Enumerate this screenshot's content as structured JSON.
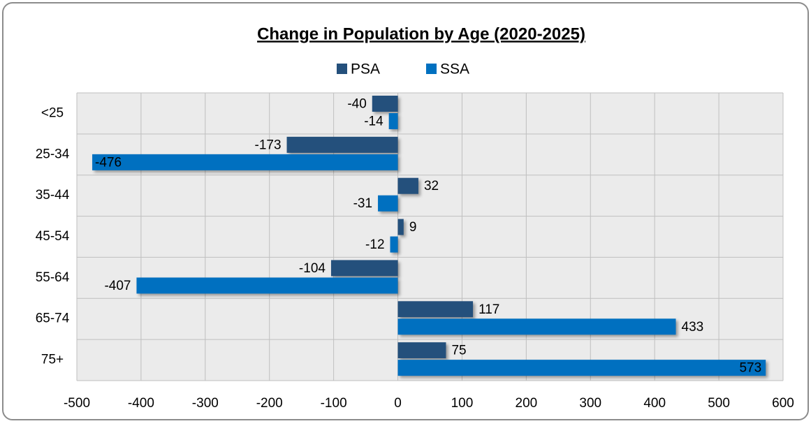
{
  "chart_data": {
    "type": "hbar",
    "title": "Change in Population by Age (2020-2025)",
    "categories": [
      "<25",
      "25-34",
      "35-44",
      "45-54",
      "55-64",
      "65-74",
      "75+"
    ],
    "series": [
      {
        "name": "PSA",
        "color": "#24507c",
        "values": [
          -40,
          -173,
          32,
          9,
          -104,
          117,
          75
        ]
      },
      {
        "name": "SSA",
        "color": "#0070c0",
        "values": [
          -14,
          -476,
          -31,
          -12,
          -407,
          433,
          573
        ]
      }
    ],
    "xlim": [
      -500,
      600
    ],
    "xticks": [
      -500,
      -400,
      -300,
      -200,
      -100,
      0,
      100,
      200,
      300,
      400,
      500,
      600
    ],
    "grid": true,
    "legend": "top"
  }
}
